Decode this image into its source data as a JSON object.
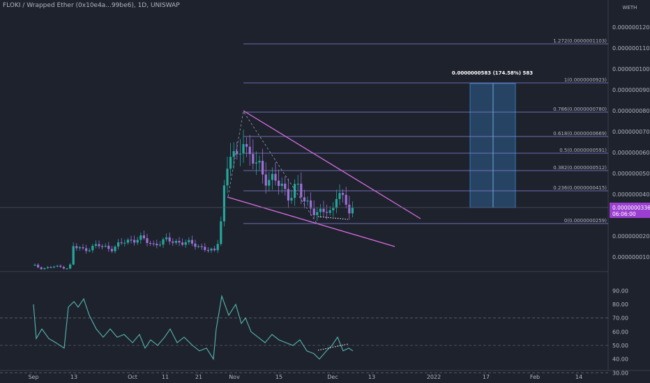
{
  "header": {
    "symbol": "FLOKI / Wrapped Ether (0x10e4a...99be6), 1D, UNISWAP"
  },
  "colors": {
    "background": "#1e222d",
    "grid": "#2a2e39",
    "up": "#26a69a",
    "down": "#9c6fd6",
    "pattern": "#d86fe3",
    "fib": "#8a86d8",
    "rsi": "#55b8b0",
    "measure": "#2d5f8f"
  },
  "price_axis": {
    "unit": "WETH",
    "ticks": [
      "0.0000001200",
      "0.0000001100",
      "0.0000001000",
      "0.0000000900",
      "0.0000000800",
      "0.0000000700",
      "0.0000000600",
      "0.0000000500",
      "0.0000000400",
      "0.0000000200",
      "0.0000000100"
    ],
    "last_price_label": "0.0000000336",
    "countdown_label": "06:06:00"
  },
  "rsi_axis": {
    "ticks": [
      "90.00",
      "80.00",
      "70.00",
      "60.00",
      "50.00",
      "40.00",
      "30.00"
    ]
  },
  "time_axis": {
    "ticks": [
      "Sep",
      "13",
      "Oct",
      "11",
      "21",
      "Nov",
      "15",
      "Dec",
      "13",
      "2022",
      "17",
      "Feb",
      "14"
    ]
  },
  "fib_levels": [
    {
      "ratio": 1.272,
      "label": "1.272(0.0000001103)"
    },
    {
      "ratio": 1,
      "label": "1(0.0000000923)"
    },
    {
      "ratio": 0.786,
      "label": "0.786(0.0000000780)"
    },
    {
      "ratio": 0.618,
      "label": "0.618(0.0000000669)"
    },
    {
      "ratio": 0.5,
      "label": "0.5(0.0000000591)"
    },
    {
      "ratio": 0.382,
      "label": "0.382(0.0000000512)"
    },
    {
      "ratio": 0.236,
      "label": "0.236(0.0000000415)"
    },
    {
      "ratio": 0,
      "label": "0(0.0000000259)"
    }
  ],
  "measure_label": "0.0000000583 (174.58%) 583",
  "chart_data": {
    "type": "candlestick",
    "title": "FLOKI / Wrapped Ether (0x10e4a...99be6), 1D, UNISWAP",
    "ylabel": "WETH",
    "x_ticks": [
      "Sep",
      "13",
      "Oct",
      "11",
      "21",
      "Nov",
      "15",
      "Dec",
      "13",
      "2022",
      "17",
      "Feb",
      "14"
    ],
    "last_price": 3.36e-08,
    "price_key_points": [
      {
        "date": "Sep",
        "close": 6e-09
      },
      {
        "date": "Sep 13",
        "close": 1.5e-08
      },
      {
        "date": "Oct",
        "close": 1.9e-08
      },
      {
        "date": "Oct 21",
        "close": 1.4e-08
      },
      {
        "date": "Nov",
        "close": 7.8e-08
      },
      {
        "date": "Nov 15",
        "close": 4.2e-08
      },
      {
        "date": "Dec",
        "close": 3e-08
      },
      {
        "date": "Dec 8",
        "close": 3.36e-08
      }
    ],
    "rsi": {
      "ticks": [
        "90.00",
        "80.00",
        "70.00",
        "60.00",
        "50.00",
        "40.00",
        "30.00"
      ],
      "key_points": [
        {
          "date": "Sep",
          "value": 81
        },
        {
          "date": "Sep 13",
          "value": 83
        },
        {
          "date": "Oct",
          "value": 57
        },
        {
          "date": "Oct 21",
          "value": 40
        },
        {
          "date": "Nov",
          "value": 86
        },
        {
          "date": "Nov 15",
          "value": 58
        },
        {
          "date": "Dec",
          "value": 42
        },
        {
          "date": "Dec 8",
          "value": 46
        }
      ]
    }
  }
}
